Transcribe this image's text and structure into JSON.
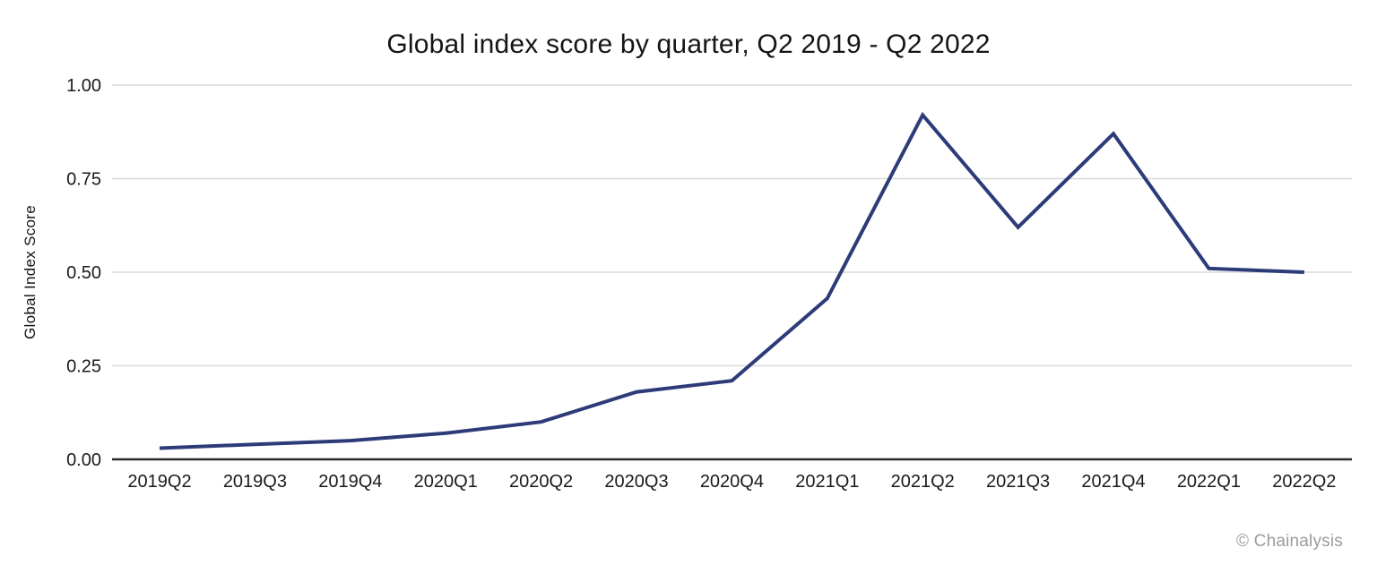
{
  "chart_data": {
    "type": "line",
    "title": "Global index score by quarter, Q2 2019 - Q2 2022",
    "ylabel": "Global Index Score",
    "xlabel": "",
    "categories": [
      "2019Q2",
      "2019Q3",
      "2019Q4",
      "2020Q1",
      "2020Q2",
      "2020Q3",
      "2020Q4",
      "2021Q1",
      "2021Q2",
      "2021Q3",
      "2021Q4",
      "2022Q1",
      "2022Q2"
    ],
    "series": [
      {
        "name": "Global Index Score",
        "values": [
          0.03,
          0.04,
          0.05,
          0.07,
          0.1,
          0.18,
          0.21,
          0.43,
          0.92,
          0.62,
          0.87,
          0.51,
          0.5
        ]
      }
    ],
    "ylim": [
      0,
      1
    ],
    "yticks": [
      0,
      0.25,
      0.5,
      0.75,
      1
    ],
    "ytick_labels": [
      "0.00",
      "0.25",
      "0.50",
      "0.75",
      "1.00"
    ],
    "grid": true,
    "legend": "none",
    "colors": {
      "line": "#2d3b78",
      "gridline": "#d9d9d9",
      "axis_line": "#2b2b2b",
      "tick_text": "#1a1a1a"
    }
  },
  "footer": {
    "attribution": "© Chainalysis"
  }
}
